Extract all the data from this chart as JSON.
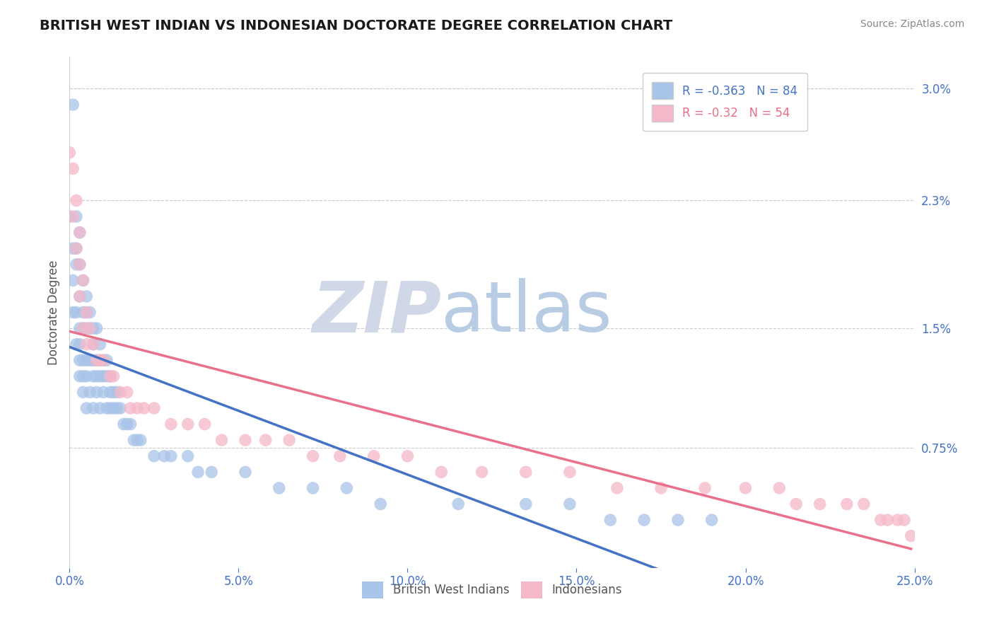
{
  "title": "BRITISH WEST INDIAN VS INDONESIAN DOCTORATE DEGREE CORRELATION CHART",
  "source": "Source: ZipAtlas.com",
  "ylabel": "Doctorate Degree",
  "xlim": [
    0,
    0.25
  ],
  "ylim": [
    0,
    0.032
  ],
  "blue_R": -0.363,
  "blue_N": 84,
  "pink_R": -0.32,
  "pink_N": 54,
  "blue_color": "#a8c4e8",
  "pink_color": "#f5b8c8",
  "blue_line_color": "#4472c4",
  "pink_line_color": "#e8708a",
  "gray_line_color": "#b0b8c8",
  "legend_label_blue": "British West Indians",
  "legend_label_pink": "Indonesians",
  "ytick_vals": [
    0.0,
    0.0075,
    0.015,
    0.023,
    0.03
  ],
  "ytick_labels": [
    "",
    "0.75%",
    "1.5%",
    "2.3%",
    "3.0%"
  ],
  "xtick_vals": [
    0.0,
    0.05,
    0.1,
    0.15,
    0.2,
    0.25
  ],
  "xtick_labels": [
    "0.0%",
    "5.0%",
    "10.0%",
    "15.0%",
    "20.0%",
    "25.0%"
  ],
  "blue_scatter_x": [
    0.001,
    0.0,
    0.001,
    0.001,
    0.001,
    0.002,
    0.002,
    0.002,
    0.002,
    0.002,
    0.003,
    0.003,
    0.003,
    0.003,
    0.003,
    0.003,
    0.003,
    0.004,
    0.004,
    0.004,
    0.004,
    0.004,
    0.004,
    0.005,
    0.005,
    0.005,
    0.005,
    0.005,
    0.005,
    0.006,
    0.006,
    0.006,
    0.006,
    0.007,
    0.007,
    0.007,
    0.007,
    0.007,
    0.008,
    0.008,
    0.008,
    0.008,
    0.009,
    0.009,
    0.009,
    0.009,
    0.01,
    0.01,
    0.01,
    0.011,
    0.011,
    0.011,
    0.012,
    0.012,
    0.012,
    0.013,
    0.013,
    0.014,
    0.014,
    0.015,
    0.016,
    0.017,
    0.018,
    0.019,
    0.02,
    0.021,
    0.025,
    0.028,
    0.03,
    0.035,
    0.038,
    0.042,
    0.052,
    0.062,
    0.072,
    0.082,
    0.092,
    0.115,
    0.135,
    0.148,
    0.16,
    0.17,
    0.18,
    0.19
  ],
  "blue_scatter_y": [
    0.029,
    0.022,
    0.02,
    0.018,
    0.016,
    0.022,
    0.02,
    0.019,
    0.016,
    0.014,
    0.021,
    0.019,
    0.017,
    0.015,
    0.014,
    0.013,
    0.012,
    0.018,
    0.016,
    0.015,
    0.013,
    0.012,
    0.011,
    0.017,
    0.016,
    0.015,
    0.013,
    0.012,
    0.01,
    0.016,
    0.015,
    0.013,
    0.011,
    0.015,
    0.014,
    0.013,
    0.012,
    0.01,
    0.015,
    0.013,
    0.012,
    0.011,
    0.014,
    0.013,
    0.012,
    0.01,
    0.013,
    0.012,
    0.011,
    0.013,
    0.012,
    0.01,
    0.012,
    0.011,
    0.01,
    0.011,
    0.01,
    0.011,
    0.01,
    0.01,
    0.009,
    0.009,
    0.009,
    0.008,
    0.008,
    0.008,
    0.007,
    0.007,
    0.007,
    0.007,
    0.006,
    0.006,
    0.006,
    0.005,
    0.005,
    0.005,
    0.004,
    0.004,
    0.004,
    0.004,
    0.003,
    0.003,
    0.003,
    0.003
  ],
  "pink_scatter_x": [
    0.0,
    0.001,
    0.001,
    0.002,
    0.002,
    0.003,
    0.003,
    0.003,
    0.004,
    0.004,
    0.005,
    0.005,
    0.006,
    0.007,
    0.008,
    0.009,
    0.01,
    0.012,
    0.013,
    0.015,
    0.017,
    0.018,
    0.02,
    0.022,
    0.025,
    0.03,
    0.035,
    0.04,
    0.045,
    0.052,
    0.058,
    0.065,
    0.072,
    0.08,
    0.09,
    0.1,
    0.11,
    0.122,
    0.135,
    0.148,
    0.162,
    0.175,
    0.188,
    0.2,
    0.21,
    0.215,
    0.222,
    0.23,
    0.235,
    0.24,
    0.242,
    0.245,
    0.247,
    0.249
  ],
  "pink_scatter_y": [
    0.026,
    0.025,
    0.022,
    0.023,
    0.02,
    0.021,
    0.019,
    0.017,
    0.018,
    0.015,
    0.016,
    0.014,
    0.015,
    0.014,
    0.013,
    0.013,
    0.013,
    0.012,
    0.012,
    0.011,
    0.011,
    0.01,
    0.01,
    0.01,
    0.01,
    0.009,
    0.009,
    0.009,
    0.008,
    0.008,
    0.008,
    0.008,
    0.007,
    0.007,
    0.007,
    0.007,
    0.006,
    0.006,
    0.006,
    0.006,
    0.005,
    0.005,
    0.005,
    0.005,
    0.005,
    0.004,
    0.004,
    0.004,
    0.004,
    0.003,
    0.003,
    0.003,
    0.003,
    0.002
  ]
}
